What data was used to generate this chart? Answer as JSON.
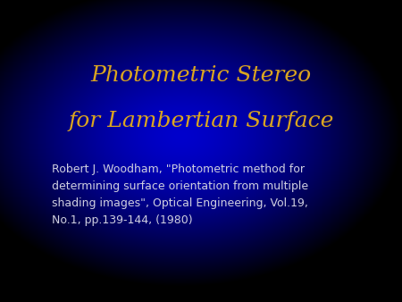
{
  "title_line1": "Photometric Stereo",
  "title_line2": "for Lambertian Surface",
  "title_color": "#DAA520",
  "body_text": "Robert J. Woodham, \"Photometric method for\ndetermining surface orientation from multiple\nshading images\", Optical Engineering, Vol.19,\nNo.1, pp.139-144, (1980)",
  "body_color": "#D0D0E0",
  "title_fontsize": 18,
  "body_fontsize": 9,
  "fig_width": 4.5,
  "fig_height": 3.38,
  "dpi": 100
}
